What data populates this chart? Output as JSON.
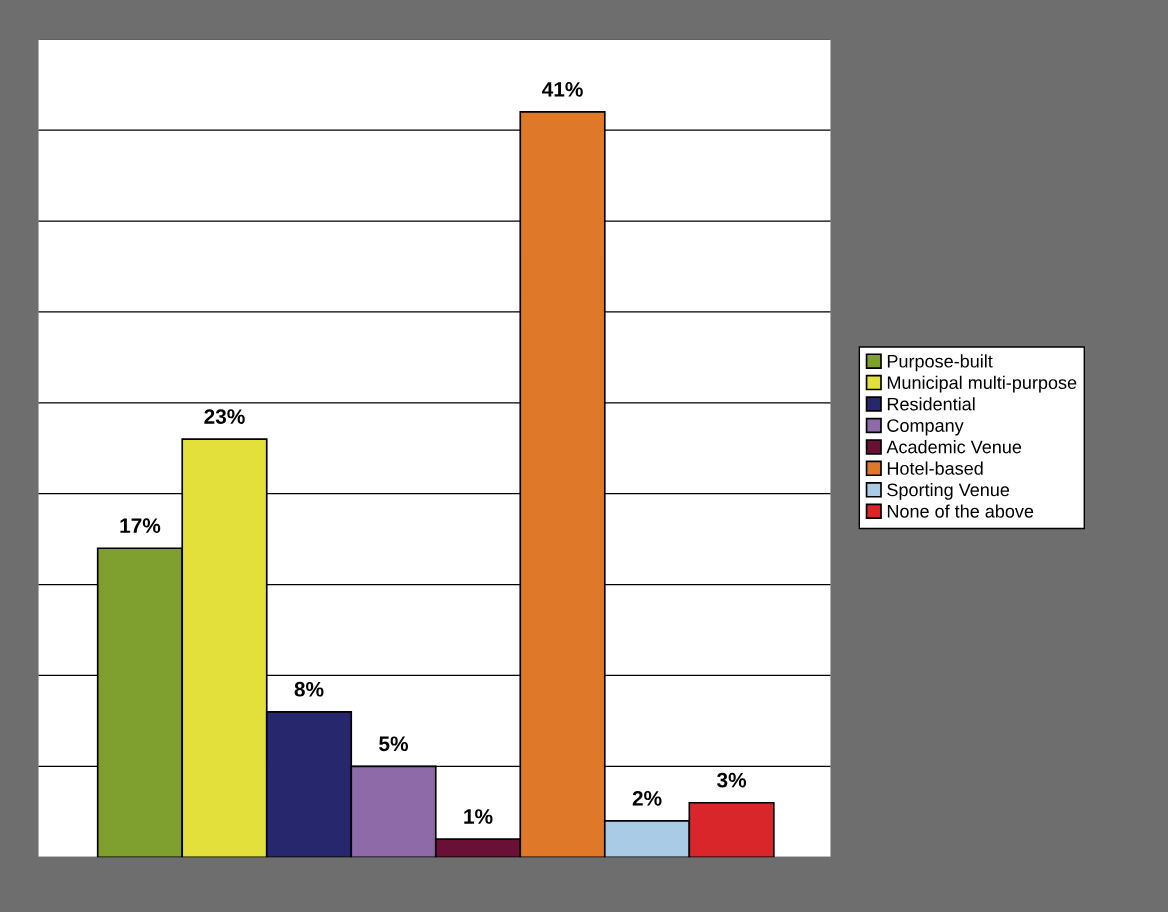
{
  "chart_data": {
    "type": "bar",
    "categories": [
      null
    ],
    "series": [
      {
        "name": "Purpose-built",
        "color": "#7f9f2f",
        "values": [
          17
        ],
        "value_labels": [
          "17%"
        ]
      },
      {
        "name": "Municipal multi-purpose",
        "color": "#e3e03c",
        "values": [
          23
        ],
        "value_labels": [
          "23%"
        ]
      },
      {
        "name": "Residential",
        "color": "#27276e",
        "values": [
          8
        ],
        "value_labels": [
          "8%"
        ]
      },
      {
        "name": "Company",
        "color": "#8e6aa8",
        "values": [
          5
        ],
        "value_labels": [
          "5%"
        ]
      },
      {
        "name": "Academic Venue",
        "color": "#6a0f35",
        "values": [
          1
        ],
        "value_labels": [
          "1%"
        ]
      },
      {
        "name": "Hotel-based",
        "color": "#e0782a",
        "values": [
          41
        ],
        "value_labels": [
          "41%"
        ]
      },
      {
        "name": "Sporting Venue",
        "color": "#a9cbe6",
        "values": [
          2
        ],
        "value_labels": [
          "2%"
        ]
      },
      {
        "name": "None of the above",
        "color": "#d8262a",
        "values": [
          3
        ],
        "value_labels": [
          "3%"
        ]
      }
    ],
    "ylim": [
      0,
      45
    ],
    "yticks": [
      {
        "value": 0,
        "label": null
      },
      {
        "value": 5,
        "label": null
      },
      {
        "value": 10,
        "label": null
      },
      {
        "value": 15,
        "label": null
      },
      {
        "value": 20,
        "label": null
      },
      {
        "value": 25,
        "label": null
      },
      {
        "value": 30,
        "label": null
      },
      {
        "value": 35,
        "label": null
      },
      {
        "value": 40,
        "label": null
      },
      {
        "value": 45,
        "label": null
      }
    ],
    "grid": "y",
    "legend": "right"
  }
}
